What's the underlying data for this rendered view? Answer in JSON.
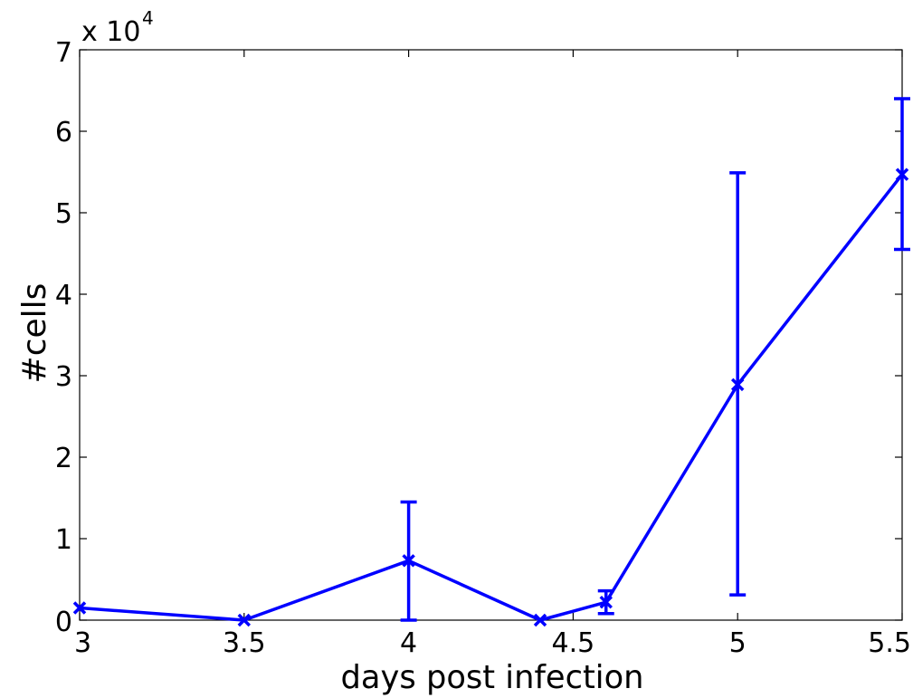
{
  "chart_data": {
    "type": "line",
    "xlabel": "days post infection",
    "ylabel": "#cells",
    "y_multiplier": {
      "base": "x 10",
      "exponent": "4"
    },
    "xlim": [
      3,
      5.5
    ],
    "ylim": [
      0,
      7
    ],
    "x_ticks": [
      3,
      3.5,
      4,
      4.5,
      5,
      5.5
    ],
    "x_tick_labels": [
      "3",
      "3.5",
      "4",
      "4.5",
      "5",
      "5.5"
    ],
    "y_ticks": [
      0,
      1,
      2,
      3,
      4,
      5,
      6,
      7
    ],
    "y_tick_labels": [
      "0",
      "1",
      "2",
      "3",
      "4",
      "5",
      "6",
      "7"
    ],
    "grid": false,
    "color": "#0000ff",
    "series": [
      {
        "marker": "x",
        "x": [
          3,
          3.5,
          4,
          4.4,
          4.6,
          5,
          5.5
        ],
        "y": [
          0.15,
          0.0,
          0.73,
          0.0,
          0.22,
          2.89,
          5.47
        ],
        "err_low": [
          null,
          null,
          0.0,
          null,
          0.08,
          0.31,
          4.55
        ],
        "err_high": [
          null,
          null,
          1.45,
          null,
          0.36,
          5.49,
          6.4
        ]
      }
    ]
  }
}
